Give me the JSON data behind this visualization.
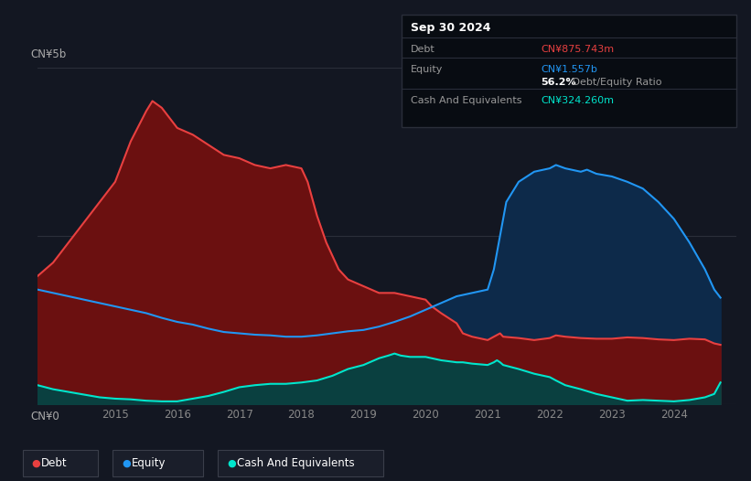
{
  "bg_color": "#131722",
  "chart_bg_color": "#131722",
  "title_box": {
    "date": "Sep 30 2024",
    "debt_label": "Debt",
    "debt_value": "CN¥875.743m",
    "debt_color": "#e84040",
    "equity_label": "Equity",
    "equity_value": "CN¥1.557b",
    "equity_color": "#2196f3",
    "ratio_bold": "56.2%",
    "ratio_text": " Debt/Equity Ratio",
    "cash_label": "Cash And Equivalents",
    "cash_value": "CN¥324.260m",
    "cash_color": "#00e5cc"
  },
  "y_label_top": "CN¥5b",
  "y_label_bottom": "CN¥0",
  "x_ticks": [
    2015,
    2016,
    2017,
    2018,
    2019,
    2020,
    2021,
    2022,
    2023,
    2024
  ],
  "debt_color": "#e84040",
  "equity_color": "#2196f3",
  "cash_color": "#00e5cc",
  "debt_fill_color": "#6b1010",
  "equity_fill_color": "#0d2a4a",
  "cash_fill_color": "#0a4040",
  "legend": [
    "Debt",
    "Equity",
    "Cash And Equivalents"
  ],
  "ylim": [
    0,
    5.0
  ],
  "debt_data": {
    "x": [
      2013.75,
      2014.0,
      2014.25,
      2014.5,
      2014.75,
      2015.0,
      2015.25,
      2015.5,
      2015.6,
      2015.75,
      2016.0,
      2016.25,
      2016.5,
      2016.75,
      2017.0,
      2017.25,
      2017.5,
      2017.75,
      2018.0,
      2018.1,
      2018.25,
      2018.4,
      2018.6,
      2018.75,
      2019.0,
      2019.25,
      2019.5,
      2019.75,
      2020.0,
      2020.1,
      2020.25,
      2020.5,
      2020.6,
      2020.75,
      2021.0,
      2021.1,
      2021.2,
      2021.25,
      2021.5,
      2021.75,
      2022.0,
      2022.1,
      2022.25,
      2022.5,
      2022.75,
      2023.0,
      2023.25,
      2023.5,
      2023.75,
      2024.0,
      2024.25,
      2024.5,
      2024.65,
      2024.75
    ],
    "y": [
      1.9,
      2.1,
      2.4,
      2.7,
      3.0,
      3.3,
      3.9,
      4.35,
      4.5,
      4.4,
      4.1,
      4.0,
      3.85,
      3.7,
      3.65,
      3.55,
      3.5,
      3.55,
      3.5,
      3.3,
      2.8,
      2.4,
      2.0,
      1.85,
      1.75,
      1.65,
      1.65,
      1.6,
      1.55,
      1.45,
      1.35,
      1.2,
      1.05,
      1.0,
      0.95,
      1.0,
      1.05,
      1.0,
      0.98,
      0.95,
      0.98,
      1.02,
      1.0,
      0.98,
      0.97,
      0.97,
      0.99,
      0.98,
      0.96,
      0.95,
      0.97,
      0.96,
      0.9,
      0.88
    ]
  },
  "equity_data": {
    "x": [
      2013.75,
      2014.0,
      2014.25,
      2014.5,
      2014.75,
      2015.0,
      2015.25,
      2015.5,
      2015.75,
      2016.0,
      2016.25,
      2016.5,
      2016.75,
      2017.0,
      2017.25,
      2017.5,
      2017.75,
      2018.0,
      2018.25,
      2018.5,
      2018.75,
      2019.0,
      2019.25,
      2019.5,
      2019.75,
      2020.0,
      2020.25,
      2020.5,
      2020.75,
      2021.0,
      2021.1,
      2021.2,
      2021.3,
      2021.5,
      2021.75,
      2022.0,
      2022.1,
      2022.25,
      2022.5,
      2022.6,
      2022.75,
      2023.0,
      2023.25,
      2023.5,
      2023.75,
      2024.0,
      2024.25,
      2024.5,
      2024.65,
      2024.75
    ],
    "y": [
      1.7,
      1.65,
      1.6,
      1.55,
      1.5,
      1.45,
      1.4,
      1.35,
      1.28,
      1.22,
      1.18,
      1.12,
      1.07,
      1.05,
      1.03,
      1.02,
      1.0,
      1.0,
      1.02,
      1.05,
      1.08,
      1.1,
      1.15,
      1.22,
      1.3,
      1.4,
      1.5,
      1.6,
      1.65,
      1.7,
      2.0,
      2.5,
      3.0,
      3.3,
      3.45,
      3.5,
      3.55,
      3.5,
      3.45,
      3.48,
      3.42,
      3.38,
      3.3,
      3.2,
      3.0,
      2.75,
      2.4,
      2.0,
      1.7,
      1.58
    ]
  },
  "cash_data": {
    "x": [
      2013.75,
      2014.0,
      2014.25,
      2014.5,
      2014.75,
      2015.0,
      2015.25,
      2015.5,
      2015.75,
      2016.0,
      2016.25,
      2016.5,
      2016.75,
      2017.0,
      2017.25,
      2017.5,
      2017.75,
      2018.0,
      2018.25,
      2018.5,
      2018.75,
      2019.0,
      2019.1,
      2019.25,
      2019.4,
      2019.5,
      2019.6,
      2019.75,
      2020.0,
      2020.1,
      2020.25,
      2020.5,
      2020.6,
      2020.75,
      2021.0,
      2021.1,
      2021.15,
      2021.2,
      2021.25,
      2021.5,
      2021.75,
      2022.0,
      2022.1,
      2022.25,
      2022.5,
      2022.75,
      2023.0,
      2023.1,
      2023.25,
      2023.5,
      2023.75,
      2024.0,
      2024.25,
      2024.5,
      2024.65,
      2024.75
    ],
    "y": [
      0.28,
      0.22,
      0.18,
      0.14,
      0.1,
      0.08,
      0.07,
      0.05,
      0.04,
      0.04,
      0.08,
      0.12,
      0.18,
      0.25,
      0.28,
      0.3,
      0.3,
      0.32,
      0.35,
      0.42,
      0.52,
      0.58,
      0.62,
      0.68,
      0.72,
      0.75,
      0.72,
      0.7,
      0.7,
      0.68,
      0.65,
      0.62,
      0.62,
      0.6,
      0.58,
      0.62,
      0.65,
      0.62,
      0.58,
      0.52,
      0.45,
      0.4,
      0.35,
      0.28,
      0.22,
      0.15,
      0.1,
      0.08,
      0.05,
      0.06,
      0.05,
      0.04,
      0.06,
      0.1,
      0.15,
      0.32
    ]
  }
}
